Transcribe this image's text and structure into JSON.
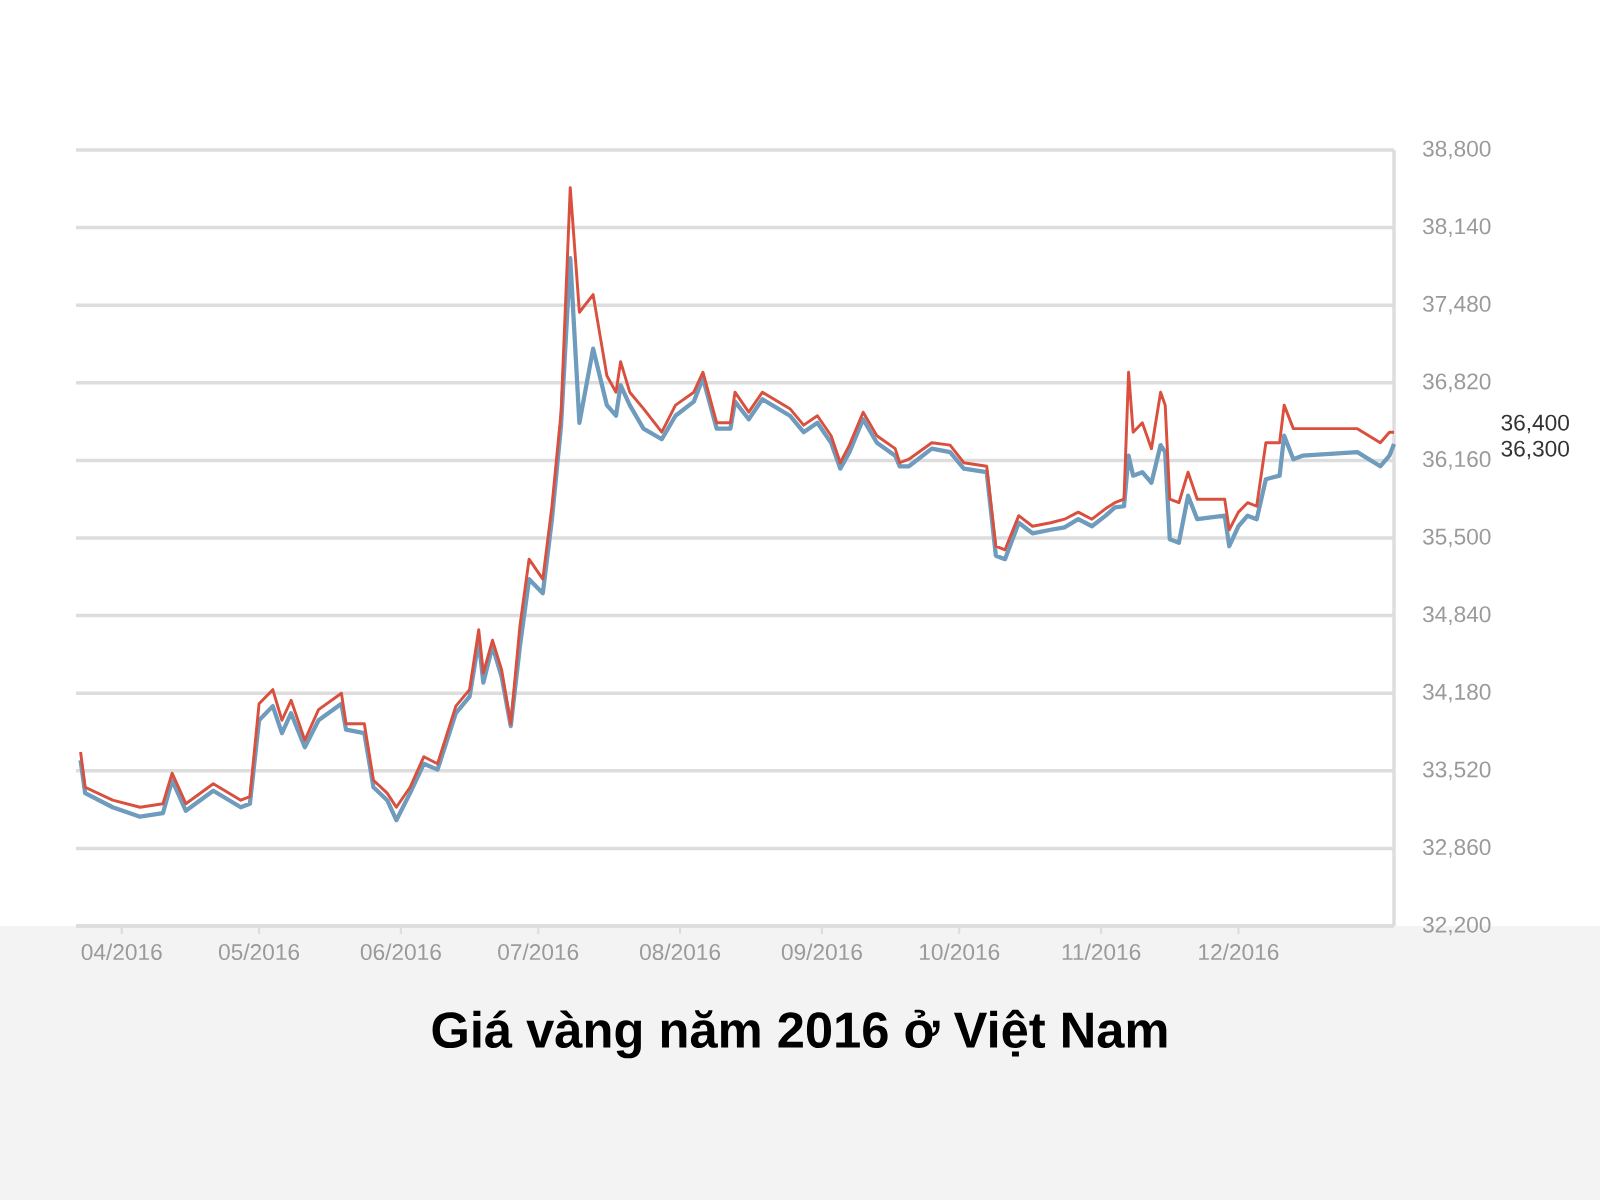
{
  "chart_data": {
    "type": "line",
    "title": "Giá vàng năm 2016 ở Việt Nam",
    "x": [
      "2016-03-23",
      "2016-03-24",
      "2016-03-30",
      "2016-04-05",
      "2016-04-10",
      "2016-04-12",
      "2016-04-15",
      "2016-04-21",
      "2016-04-27",
      "2016-04-29",
      "2016-05-01",
      "2016-05-04",
      "2016-05-06",
      "2016-05-08",
      "2016-05-11",
      "2016-05-14",
      "2016-05-19",
      "2016-05-20",
      "2016-05-24",
      "2016-05-26",
      "2016-05-29",
      "2016-05-31",
      "2016-06-03",
      "2016-06-06",
      "2016-06-09",
      "2016-06-13",
      "2016-06-16",
      "2016-06-18",
      "2016-06-19",
      "2016-06-21",
      "2016-06-23",
      "2016-06-25",
      "2016-06-27",
      "2016-06-29",
      "2016-07-02",
      "2016-07-04",
      "2016-07-06",
      "2016-07-08",
      "2016-07-10",
      "2016-07-13",
      "2016-07-16",
      "2016-07-18",
      "2016-07-19",
      "2016-07-21",
      "2016-07-24",
      "2016-07-28",
      "2016-07-31",
      "2016-08-04",
      "2016-08-06",
      "2016-08-09",
      "2016-08-12",
      "2016-08-13",
      "2016-08-16",
      "2016-08-19",
      "2016-08-25",
      "2016-08-28",
      "2016-08-31",
      "2016-09-03",
      "2016-09-05",
      "2016-09-07",
      "2016-09-10",
      "2016-09-13",
      "2016-09-17",
      "2016-09-18",
      "2016-09-20",
      "2016-09-25",
      "2016-09-29",
      "2016-10-02",
      "2016-10-07",
      "2016-10-09",
      "2016-10-11",
      "2016-10-14",
      "2016-10-17",
      "2016-10-21",
      "2016-10-24",
      "2016-10-27",
      "2016-10-30",
      "2016-11-02",
      "2016-11-04",
      "2016-11-06",
      "2016-11-07",
      "2016-11-08",
      "2016-11-10",
      "2016-11-12",
      "2016-11-14",
      "2016-11-15",
      "2016-11-16",
      "2016-11-18",
      "2016-11-20",
      "2016-11-22",
      "2016-11-28",
      "2016-11-29",
      "2016-12-01",
      "2016-12-03",
      "2016-12-05",
      "2016-12-07",
      "2016-12-10",
      "2016-12-11",
      "2016-12-13",
      "2016-12-15",
      "2016-12-27",
      "2017-01-01",
      "2017-01-03",
      "2017-01-04"
    ],
    "series": [
      {
        "color": "#d9503f",
        "values": [
          33680,
          33380,
          33270,
          33210,
          33240,
          33500,
          33240,
          33410,
          33270,
          33300,
          34090,
          34210,
          33950,
          34120,
          33780,
          34040,
          34180,
          33920,
          33920,
          33440,
          33330,
          33210,
          33380,
          33640,
          33580,
          34070,
          34210,
          34720,
          34350,
          34630,
          34380,
          33920,
          34750,
          35320,
          35150,
          35770,
          36570,
          38480,
          37420,
          37570,
          36880,
          36740,
          37000,
          36740,
          36600,
          36400,
          36630,
          36740,
          36910,
          36480,
          36480,
          36740,
          36570,
          36740,
          36600,
          36460,
          36540,
          36370,
          36140,
          36290,
          36570,
          36370,
          36260,
          36140,
          36170,
          36310,
          36290,
          36140,
          36110,
          35430,
          35400,
          35690,
          35600,
          35630,
          35660,
          35720,
          35660,
          35750,
          35800,
          35830,
          36910,
          36400,
          36480,
          36260,
          36740,
          36630,
          35830,
          35800,
          36060,
          35830,
          35830,
          35570,
          35720,
          35800,
          35770,
          36310,
          36310,
          36630,
          36430,
          36430,
          36430,
          36310,
          36400,
          36400
        ]
      },
      {
        "color": "#6f9bbd",
        "values": [
          33610,
          33330,
          33210,
          33130,
          33160,
          33440,
          33180,
          33350,
          33210,
          33240,
          33950,
          34070,
          33840,
          34010,
          33720,
          33950,
          34090,
          33870,
          33840,
          33380,
          33270,
          33100,
          33330,
          33580,
          33530,
          34010,
          34150,
          34630,
          34270,
          34580,
          34320,
          33900,
          34580,
          35150,
          35030,
          35660,
          36460,
          37880,
          36480,
          37110,
          36630,
          36540,
          36800,
          36630,
          36430,
          36340,
          36540,
          36660,
          36860,
          36430,
          36430,
          36660,
          36510,
          36680,
          36540,
          36400,
          36480,
          36310,
          36090,
          36230,
          36510,
          36310,
          36200,
          36110,
          36110,
          36260,
          36230,
          36090,
          36060,
          35350,
          35320,
          35630,
          35540,
          35570,
          35590,
          35660,
          35600,
          35690,
          35760,
          35770,
          36200,
          36030,
          36060,
          35970,
          36290,
          36230,
          35490,
          35460,
          35860,
          35660,
          35690,
          35430,
          35600,
          35690,
          35660,
          36000,
          36030,
          36370,
          36170,
          36200,
          36230,
          36110,
          36200,
          36300
        ]
      }
    ],
    "xlim": [
      "2016-03-22",
      "2017-01-04"
    ],
    "xticks": [
      {
        "value": "2016-04-01",
        "label": "04/2016"
      },
      {
        "value": "2016-05-01",
        "label": "05/2016"
      },
      {
        "value": "2016-06-01",
        "label": "06/2016"
      },
      {
        "value": "2016-07-01",
        "label": "07/2016"
      },
      {
        "value": "2016-08-01",
        "label": "08/2016"
      },
      {
        "value": "2016-09-01",
        "label": "09/2016"
      },
      {
        "value": "2016-10-01",
        "label": "10/2016"
      },
      {
        "value": "2016-11-01",
        "label": "11/2016"
      },
      {
        "value": "2016-12-01",
        "label": "12/2016"
      }
    ],
    "ylim": [
      32200,
      38800
    ],
    "yticks": [
      {
        "value": 32200,
        "label": "32,200"
      },
      {
        "value": 32860,
        "label": "32,860"
      },
      {
        "value": 33520,
        "label": "33,520"
      },
      {
        "value": 34180,
        "label": "34,180"
      },
      {
        "value": 34840,
        "label": "34,840"
      },
      {
        "value": 35500,
        "label": "35,500"
      },
      {
        "value": 36160,
        "label": "36,160"
      },
      {
        "value": 36820,
        "label": "36,820"
      },
      {
        "value": 37480,
        "label": "37,480"
      },
      {
        "value": 38140,
        "label": "38,140"
      },
      {
        "value": 38800,
        "label": "38,800"
      }
    ],
    "annotations": [
      "36,400",
      "36,300"
    ],
    "grid": "y"
  }
}
